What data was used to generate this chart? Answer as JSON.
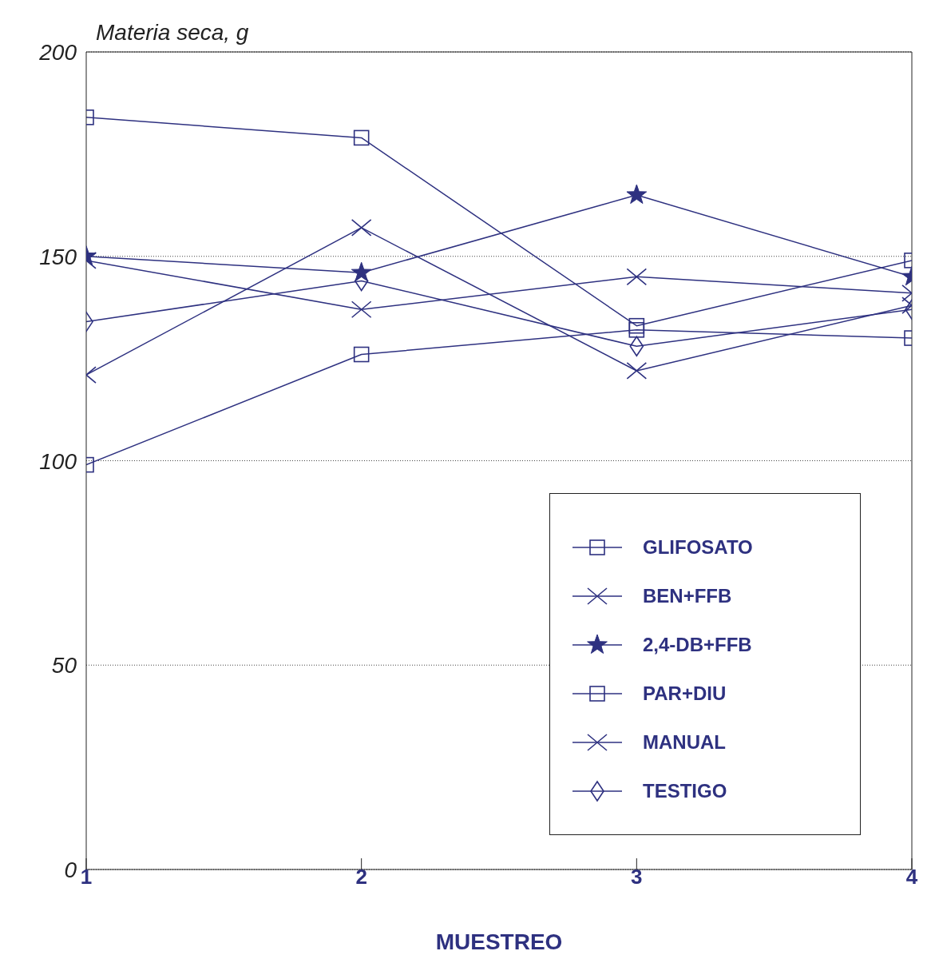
{
  "chart_data": {
    "type": "line",
    "ylabel": "Materia seca, g",
    "xlabel": "MUESTREO",
    "x": [
      1,
      2,
      3,
      4
    ],
    "xlim": [
      1,
      4
    ],
    "xticks": [
      1,
      2,
      3,
      4
    ],
    "ylim": [
      0,
      200
    ],
    "yticks": [
      0,
      50,
      100,
      150,
      200
    ],
    "grid": "y",
    "legend": "bottom right",
    "series": [
      {
        "name": "GLIFOSATO",
        "color": "#2e3180",
        "marker": "square",
        "values": [
          184,
          179,
          133,
          149
        ]
      },
      {
        "name": "BEN+FFB",
        "color": "#2e3180",
        "marker": "cross",
        "values": [
          149,
          137,
          145,
          141
        ]
      },
      {
        "name": "2,4-DB+FFB",
        "color": "#2e3180",
        "marker": "star",
        "values": [
          150,
          146,
          165,
          145
        ]
      },
      {
        "name": "PAR+DIU",
        "color": "#2e3180",
        "marker": "square",
        "values": [
          99,
          126,
          132,
          130
        ]
      },
      {
        "name": "MANUAL",
        "color": "#2e3180",
        "marker": "cross",
        "values": [
          121,
          157,
          122,
          138
        ]
      },
      {
        "name": "TESTIGO",
        "color": "#2e3180",
        "marker": "diamond",
        "values": [
          134,
          144,
          128,
          137
        ]
      }
    ]
  }
}
